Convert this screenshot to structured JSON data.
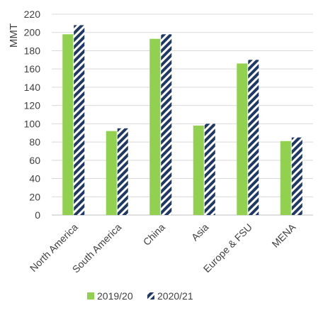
{
  "chart_data": {
    "type": "bar",
    "title": "",
    "xlabel": "",
    "ylabel": "MMT",
    "ylim": [
      0,
      220
    ],
    "yticks": [
      0,
      20,
      40,
      60,
      80,
      100,
      120,
      140,
      160,
      180,
      200,
      220
    ],
    "grid": true,
    "legend_position": "bottom",
    "categories": [
      "North America",
      "South America",
      "China",
      "Asia",
      "Europe & FSU",
      "MENA"
    ],
    "series": [
      {
        "name": "2019/20",
        "values": [
          198,
          92,
          193,
          98,
          166,
          81
        ],
        "color": "#92d050",
        "pattern": "solid"
      },
      {
        "name": "2020/21",
        "values": [
          208,
          95,
          198,
          100,
          170,
          85
        ],
        "color": "#1f3864",
        "pattern": "diagonal-stripes"
      }
    ]
  }
}
